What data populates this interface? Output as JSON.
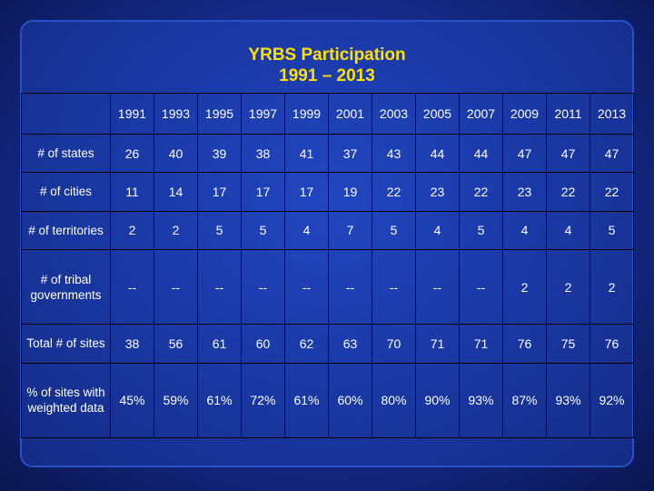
{
  "title": {
    "line1": "YRBS Participation",
    "line2": "1991 – 2013"
  },
  "table": {
    "corner": "",
    "years": [
      "1991",
      "1993",
      "1995",
      "1997",
      "1999",
      "2001",
      "2003",
      "2005",
      "2007",
      "2009",
      "2011",
      "2013"
    ],
    "rows": [
      {
        "label": "# of states",
        "values": [
          "26",
          "40",
          "39",
          "38",
          "41",
          "37",
          "43",
          "44",
          "44",
          "47",
          "47",
          "47"
        ]
      },
      {
        "label": "# of cities",
        "values": [
          "11",
          "14",
          "17",
          "17",
          "17",
          "19",
          "22",
          "23",
          "22",
          "23",
          "22",
          "22"
        ]
      },
      {
        "label": "# of territories",
        "values": [
          "2",
          "2",
          "5",
          "5",
          "4",
          "7",
          "5",
          "4",
          "5",
          "4",
          "4",
          "5"
        ]
      },
      {
        "label": "# of tribal governments",
        "values": [
          "--",
          "--",
          "--",
          "--",
          "--",
          "--",
          "--",
          "--",
          "--",
          "2",
          "2",
          "2"
        ]
      },
      {
        "label": "Total # of sites",
        "values": [
          "38",
          "56",
          "61",
          "60",
          "62",
          "63",
          "70",
          "71",
          "71",
          "76",
          "75",
          "76"
        ]
      },
      {
        "label": "% of sites with weighted data",
        "values": [
          "45%",
          "59%",
          "61%",
          "72%",
          "61%",
          "60%",
          "80%",
          "90%",
          "93%",
          "87%",
          "93%",
          "92%"
        ]
      }
    ]
  },
  "colors": {
    "title": "#ffe000",
    "text": "#ffffff",
    "background": "#1b3aa8",
    "gridline": "#000000"
  }
}
